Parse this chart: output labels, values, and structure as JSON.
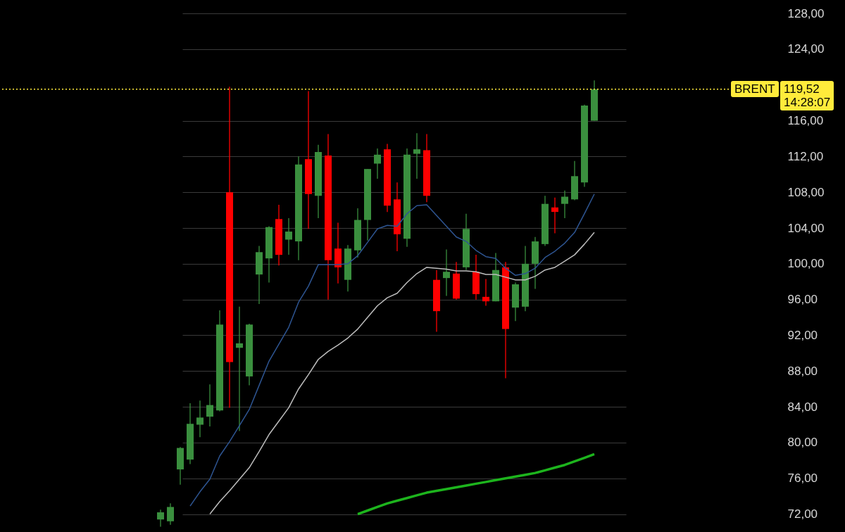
{
  "chart_data": {
    "type": "candlestick",
    "categories": [
      null,
      null,
      null,
      null,
      null,
      null,
      null,
      null,
      null,
      null,
      null,
      null,
      null,
      null,
      null,
      null,
      null,
      null,
      null,
      null,
      null,
      null,
      null,
      null,
      null,
      null,
      null,
      null,
      null,
      null,
      null,
      null,
      null,
      null,
      null,
      null,
      null,
      null,
      null,
      null,
      null,
      null,
      null,
      null,
      null
    ],
    "ohlc": [
      [
        71.4,
        72.5,
        70.6,
        72.2
      ],
      [
        71.2,
        73.2,
        70.8,
        72.8
      ],
      [
        77.0,
        79.5,
        75.3,
        79.4
      ],
      [
        78.1,
        84.4,
        77.6,
        82.1
      ],
      [
        82.0,
        84.7,
        80.6,
        82.8
      ],
      [
        82.9,
        86.5,
        81.8,
        84.2
      ],
      [
        83.6,
        94.8,
        83.5,
        93.2
      ],
      [
        108.0,
        119.8,
        83.9,
        89.0
      ],
      [
        90.6,
        95.2,
        81.3,
        91.1
      ],
      [
        87.4,
        93.3,
        86.4,
        93.2
      ],
      [
        98.8,
        102.0,
        95.5,
        101.3
      ],
      [
        100.6,
        104.2,
        97.9,
        104.1
      ],
      [
        105.0,
        106.6,
        99.8,
        101.0
      ],
      [
        102.7,
        105.1,
        101.0,
        103.6
      ],
      [
        102.5,
        112.0,
        100.4,
        111.1
      ],
      [
        111.7,
        119.3,
        103.9,
        107.8
      ],
      [
        107.6,
        113.3,
        105.1,
        112.5
      ],
      [
        112.1,
        114.5,
        96.0,
        100.4
      ],
      [
        101.7,
        104.6,
        97.8,
        99.6
      ],
      [
        98.2,
        102.1,
        96.9,
        101.7
      ],
      [
        101.5,
        106.2,
        100.7,
        104.9
      ],
      [
        104.9,
        110.6,
        102.6,
        110.6
      ],
      [
        111.2,
        112.9,
        109.5,
        112.2
      ],
      [
        112.8,
        113.4,
        105.8,
        106.5
      ],
      [
        107.2,
        109.1,
        101.4,
        103.3
      ],
      [
        102.8,
        112.9,
        101.9,
        112.2
      ],
      [
        112.3,
        114.6,
        109.5,
        112.8
      ],
      [
        112.7,
        114.5,
        106.9,
        107.6
      ],
      [
        98.2,
        99.3,
        92.4,
        94.7
      ],
      [
        98.4,
        101.6,
        96.4,
        99.1
      ],
      [
        98.9,
        100.2,
        96.0,
        96.1
      ],
      [
        99.6,
        105.6,
        99.3,
        103.9
      ],
      [
        99.1,
        101.0,
        96.0,
        96.6
      ],
      [
        96.3,
        98.3,
        95.3,
        95.8
      ],
      [
        95.8,
        101.2,
        95.8,
        99.3
      ],
      [
        99.6,
        100.2,
        87.2,
        92.7
      ],
      [
        95.1,
        97.9,
        93.6,
        97.7
      ],
      [
        95.2,
        102.0,
        94.7,
        100.0
      ],
      [
        100.0,
        103.0,
        97.2,
        102.5
      ],
      [
        102.2,
        107.6,
        102.0,
        106.7
      ],
      [
        106.3,
        107.4,
        103.4,
        105.8
      ],
      [
        106.7,
        108.2,
        105.1,
        107.5
      ],
      [
        107.2,
        111.5,
        107.1,
        109.8
      ],
      [
        109.1,
        117.8,
        108.6,
        117.7
      ],
      [
        116.0,
        120.5,
        116.0,
        119.52
      ]
    ],
    "colors": [
      "#3a8f3e",
      "#3a8f3e",
      "#3a8f3e",
      "#3a8f3e",
      "#3a8f3e",
      "#3a8f3e",
      "#3a8f3e",
      "#ff0000",
      "#3a8f3e",
      "#3a8f3e",
      "#3a8f3e",
      "#3a8f3e",
      "#ff0000",
      "#3a8f3e",
      "#3a8f3e",
      "#ff0000",
      "#3a8f3e",
      "#ff0000",
      "#ff0000",
      "#3a8f3e",
      "#3a8f3e",
      "#3a8f3e",
      "#3a8f3e",
      "#ff0000",
      "#ff0000",
      "#3a8f3e",
      "#3a8f3e",
      "#ff0000",
      "#ff0000",
      "#3a8f3e",
      "#ff0000",
      "#3a8f3e",
      "#ff0000",
      "#ff0000",
      "#3a8f3e",
      "#ff0000",
      "#3a8f3e",
      "#3a8f3e",
      "#3a8f3e",
      "#3a8f3e",
      "#ff0000",
      "#3a8f3e",
      "#3a8f3e",
      "#3a8f3e",
      "#3a8f3e"
    ],
    "series": [
      {
        "type": "line",
        "color": "#2e5592",
        "values": [
          null,
          null,
          null,
          72.9,
          74.5,
          75.9,
          78.5,
          80.1,
          81.9,
          83.7,
          86.4,
          89.1,
          91.0,
          92.9,
          95.7,
          97.5,
          99.9,
          99.9,
          99.9,
          100.0,
          100.9,
          102.4,
          103.9,
          104.3,
          104.2,
          105.6,
          106.5,
          106.6,
          105.4,
          104.2,
          103.0,
          102.5,
          101.5,
          100.8,
          100.6,
          99.5,
          98.7,
          98.9,
          99.5,
          100.7,
          101.4,
          102.3,
          103.5,
          105.6,
          107.8
        ]
      },
      {
        "type": "line",
        "color": "#bdbdbd",
        "values": [
          null,
          null,
          null,
          null,
          null,
          72.0,
          73.4,
          74.6,
          75.9,
          77.2,
          79.0,
          80.9,
          82.4,
          83.9,
          86.0,
          87.6,
          89.3,
          90.2,
          90.9,
          91.7,
          92.7,
          94.0,
          95.3,
          96.2,
          96.7,
          97.9,
          98.9,
          99.6,
          99.5,
          99.4,
          99.2,
          99.2,
          99.1,
          98.8,
          98.8,
          98.5,
          98.2,
          98.2,
          98.6,
          99.3,
          99.6,
          100.3,
          101.0,
          102.2,
          103.5
        ]
      },
      {
        "type": "line",
        "color": "#1db41d",
        "values": [
          null,
          null,
          null,
          null,
          null,
          null,
          null,
          null,
          null,
          null,
          null,
          null,
          null,
          null,
          null,
          null,
          null,
          null,
          null,
          null,
          72.0,
          72.4,
          72.8,
          73.2,
          73.5,
          73.8,
          74.1,
          74.4,
          74.6,
          74.8,
          75.0,
          75.2,
          75.4,
          75.6,
          75.8,
          76.0,
          76.2,
          76.4,
          76.6,
          76.9,
          77.2,
          77.5,
          77.9,
          78.3,
          78.7
        ]
      }
    ],
    "ylim": [
      70,
      129.5
    ],
    "yticks": [
      {
        "value": 72,
        "label": "72,00"
      },
      {
        "value": 76,
        "label": "76,00"
      },
      {
        "value": 80,
        "label": "80,00"
      },
      {
        "value": 84,
        "label": "84,00"
      },
      {
        "value": 88,
        "label": "88,00"
      },
      {
        "value": 92,
        "label": "92,00"
      },
      {
        "value": 96,
        "label": "96,00"
      },
      {
        "value": 100,
        "label": "100,00"
      },
      {
        "value": 104,
        "label": "104,00"
      },
      {
        "value": 108,
        "label": "108,00"
      },
      {
        "value": 112,
        "label": "112,00"
      },
      {
        "value": 116,
        "label": "116,00"
      },
      {
        "value": 124,
        "label": "124,00"
      },
      {
        "value": 128,
        "label": "128,00"
      }
    ],
    "grid": "y",
    "tick_labels": "y",
    "ref_lines": [
      {
        "axis": "y",
        "value": 119.52,
        "label": "BRENT",
        "color": "#ffeb3b",
        "line_style": "dotted"
      }
    ],
    "annotations": [
      "119,52",
      "14:28:07"
    ]
  }
}
